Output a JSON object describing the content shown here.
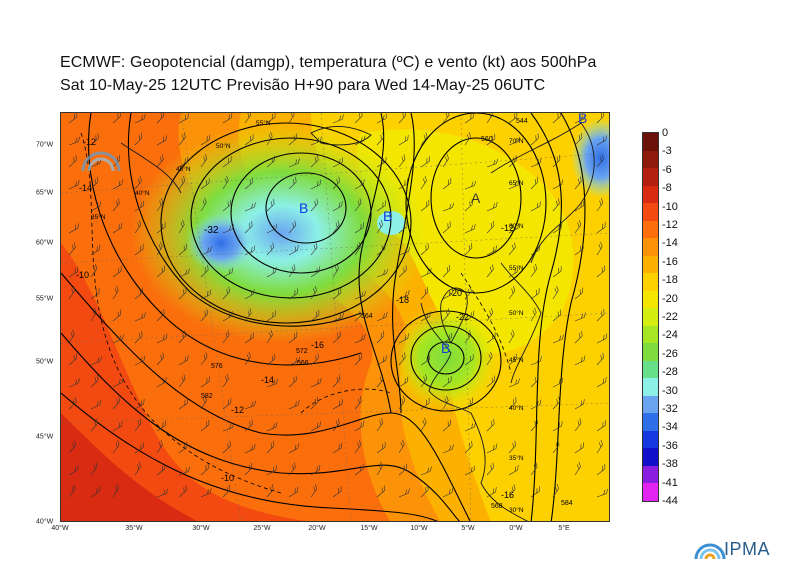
{
  "header": {
    "line1": "ECMWF:  Geopotencial (damgp), temperatura (ºC) e vento (kt) aos 500hPa",
    "line2": "Sat 10-May-25 12UTC Previsão H+90 para Wed 14-May-25 06UTC"
  },
  "axes": {
    "lon_labels": [
      "40°W",
      "35°W",
      "30°W",
      "25°W",
      "20°W",
      "15°W",
      "10°W",
      "5°W",
      "0°W",
      "5°E"
    ],
    "lat_labels": [
      "70°W",
      "65°W",
      "60°W",
      "55°W",
      "50°W",
      "45°W",
      "40°W"
    ]
  },
  "centers": [
    {
      "label": "B",
      "kind": "low"
    },
    {
      "label": "B",
      "kind": "low"
    },
    {
      "label": "A",
      "kind": "high"
    },
    {
      "label": "B",
      "kind": "low"
    },
    {
      "label": "B",
      "kind": "low"
    }
  ],
  "map_labels": [
    "-12",
    "-14",
    "-16",
    "-10",
    "-32",
    "-20",
    "-18",
    "-20",
    "-22",
    "-12",
    "-14",
    "-12",
    "-10",
    "-16",
    "576",
    "582",
    "584",
    "564",
    "566",
    "572",
    "560",
    "568",
    "544",
    "548",
    "536",
    "-32"
  ],
  "graticule_labels": [
    "55°N",
    "50°N",
    "45°N",
    "40°N",
    "35°N",
    "70°N",
    "65°N",
    "60°N",
    "55°N",
    "50°N",
    "45°N",
    "40°N",
    "35°N",
    "30°N"
  ],
  "colorbar": {
    "ticks": [
      "0",
      "-3",
      "-6",
      "-8",
      "-10",
      "-12",
      "-14",
      "-16",
      "-18",
      "-20",
      "-22",
      "-24",
      "-26",
      "-28",
      "-30",
      "-32",
      "-34",
      "-36",
      "-38",
      "-41",
      "-44"
    ],
    "colors": [
      "#6b1208",
      "#8f1a0c",
      "#b3200f",
      "#d92a12",
      "#f24a10",
      "#fa6e0c",
      "#fb9208",
      "#fcb000",
      "#fdd000",
      "#f5e600",
      "#d4ee10",
      "#a6e622",
      "#7fdc3e",
      "#66e08a",
      "#8cf0e6",
      "#6aa4f0",
      "#2f6fe8",
      "#1438e0",
      "#1010c8",
      "#8a1ee0",
      "#e224f0"
    ],
    "unit_hint": "temperature"
  },
  "logo": {
    "text": "IPMA"
  },
  "colors": {
    "frame": "#333333",
    "contour": "#000000",
    "coast": "#1a1a1a"
  }
}
